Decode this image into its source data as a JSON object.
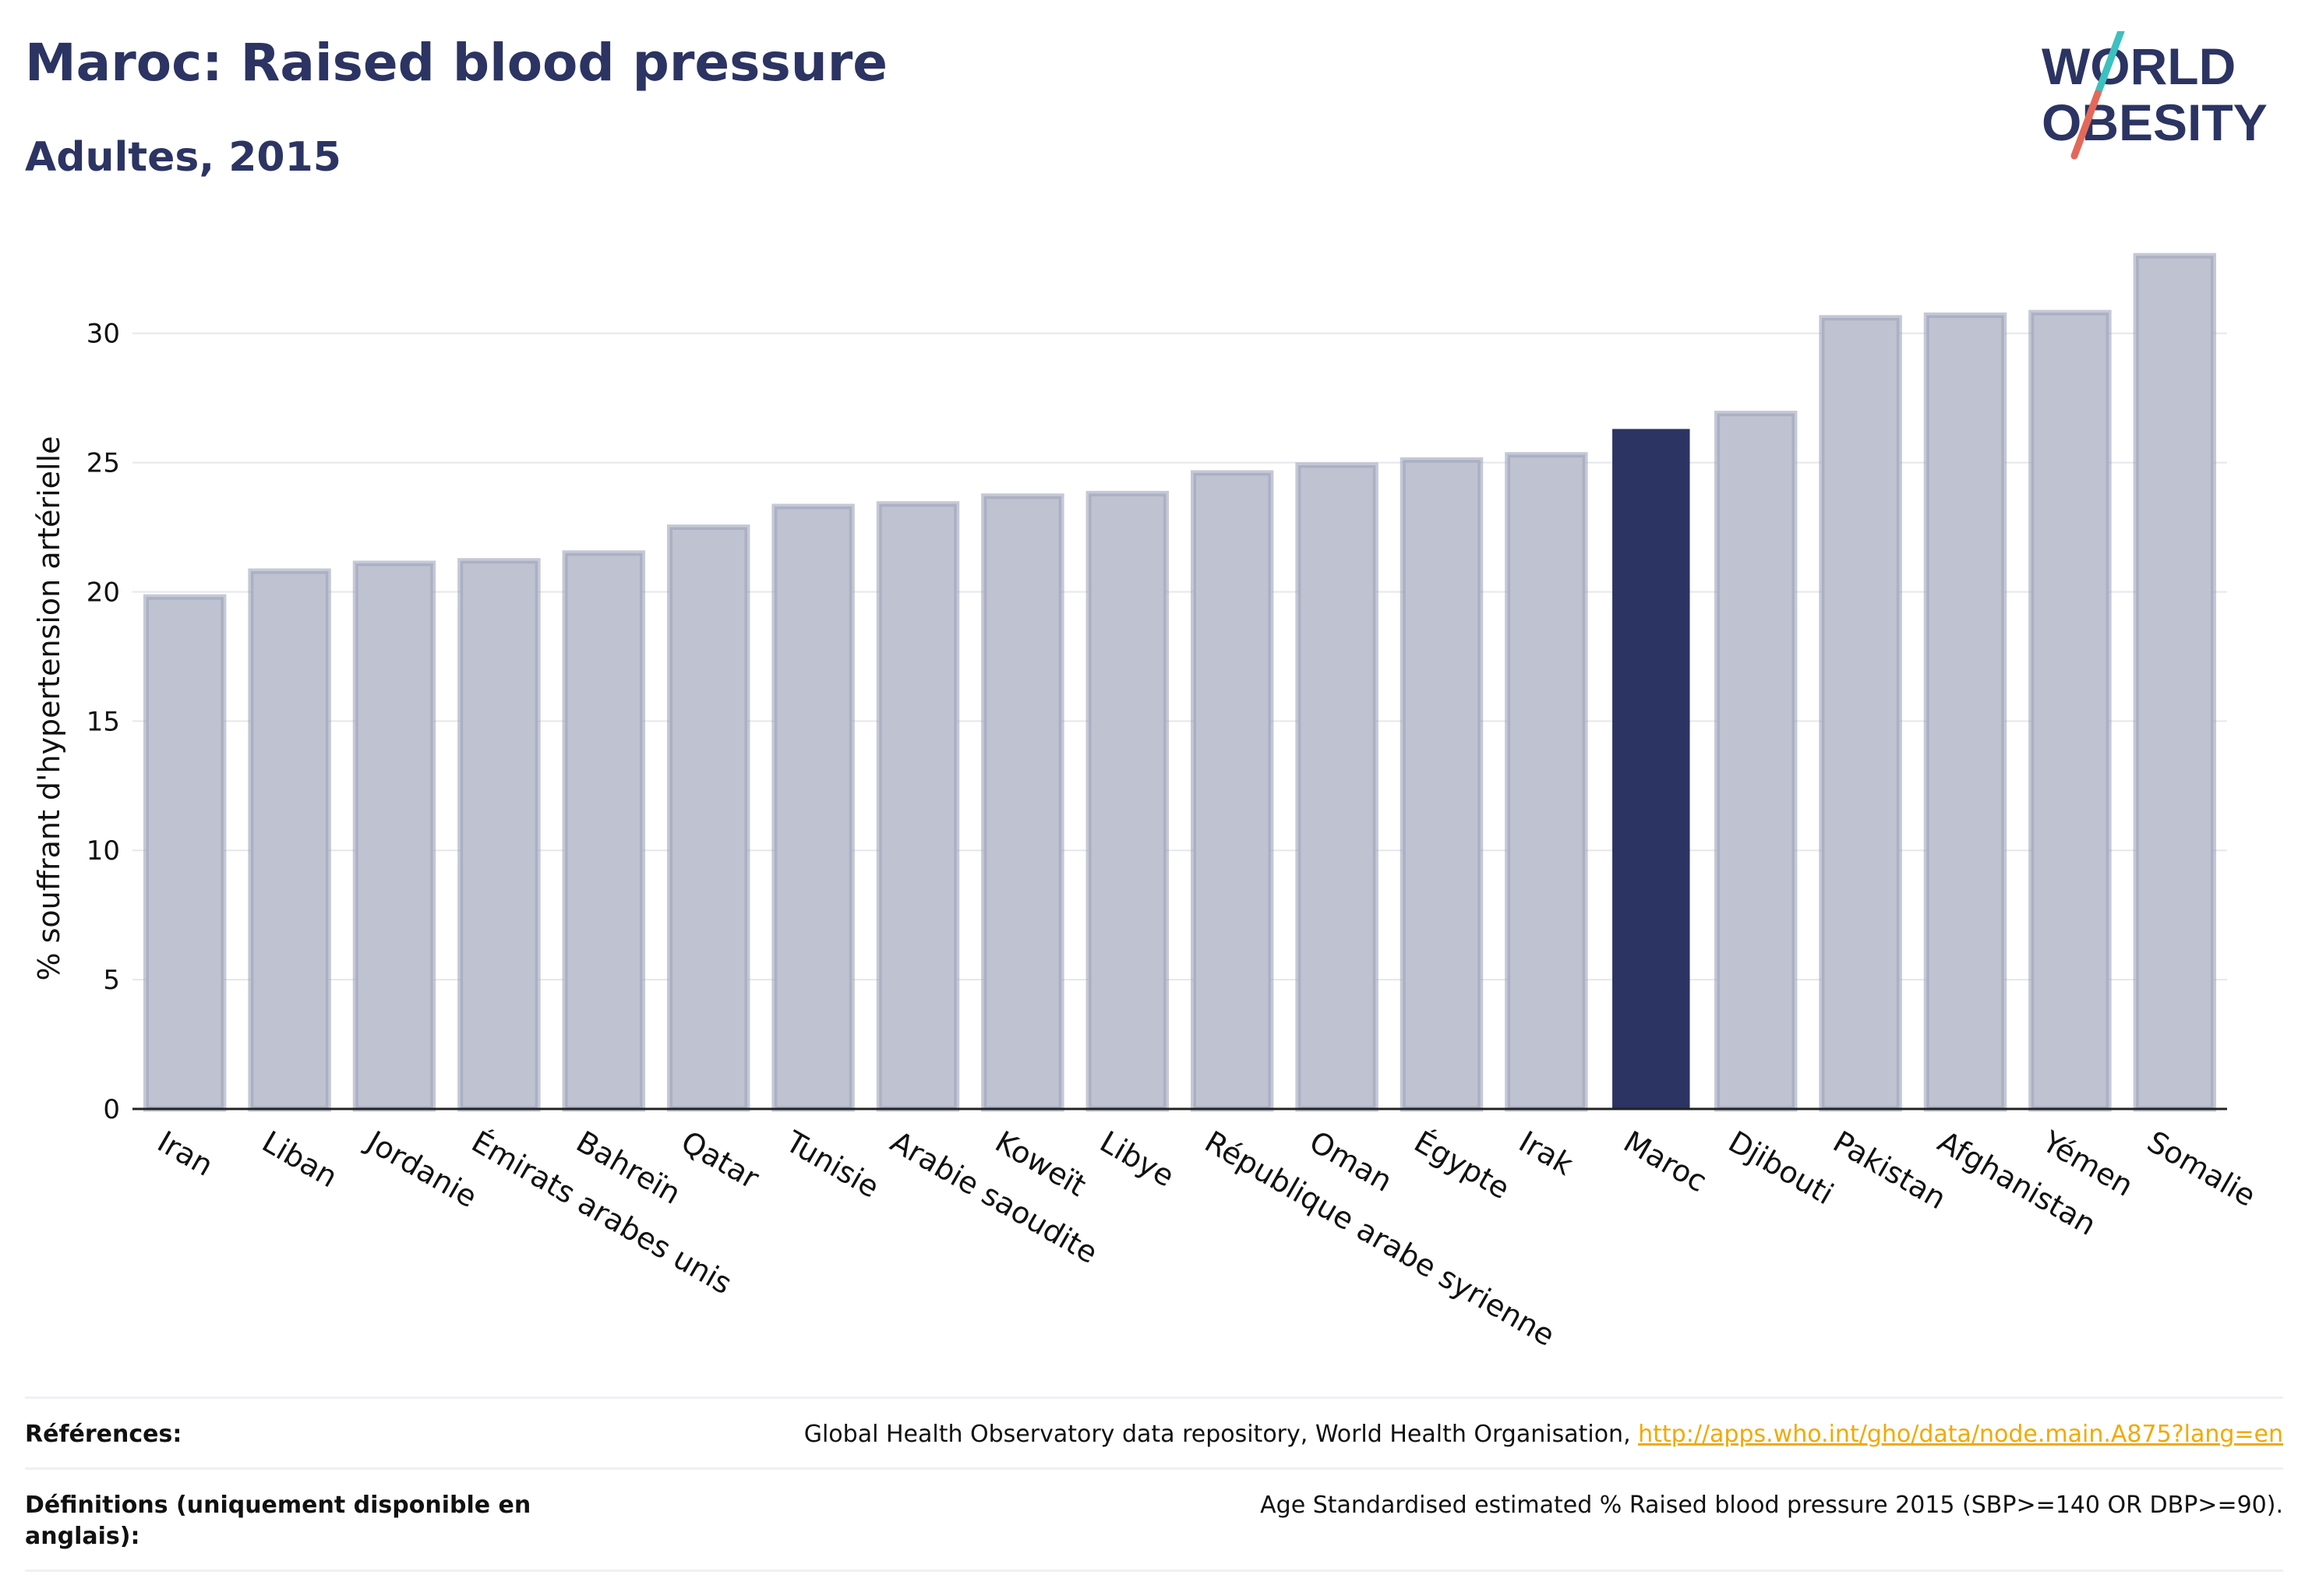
{
  "header": {
    "title": "Maroc: Raised blood pressure",
    "subtitle": "Adultes, 2015"
  },
  "logo": {
    "line1": "WORLD",
    "line2": "OBESITY",
    "colors": {
      "text": "#2b3462",
      "accent_teal": "#3cc0c0",
      "accent_coral": "#e4685a"
    }
  },
  "chart_data": {
    "type": "bar",
    "ylabel": "% souffrant d'hypertension artérielle",
    "xlabel": "",
    "ylim": [
      0,
      34
    ],
    "yticks": [
      0,
      5,
      10,
      15,
      20,
      25,
      30
    ],
    "grid": true,
    "highlight": "Maroc",
    "colors": {
      "bar": "#bfc2d0",
      "bar_edge": "#9ea3bb",
      "highlight": "#2b3462"
    },
    "categories": [
      "Iran",
      "Liban",
      "Jordanie",
      "Émirats arabes unis",
      "Bahreïn",
      "Qatar",
      "Tunisie",
      "Arabie saoudite",
      "Koweït",
      "Libye",
      "République arabe syrienne",
      "Oman",
      "Égypte",
      "Irak",
      "Maroc",
      "Djibouti",
      "Pakistan",
      "Afghanistan",
      "Yémen",
      "Somalie"
    ],
    "values": [
      19.8,
      20.8,
      21.1,
      21.2,
      21.5,
      22.5,
      23.3,
      23.4,
      23.7,
      23.8,
      24.6,
      24.9,
      25.1,
      25.3,
      26.3,
      26.9,
      30.6,
      30.7,
      30.8,
      33.0
    ]
  },
  "references": {
    "sources_label": "Références:",
    "sources_text": "Global Health Observatory data repository, World Health Organisation, ",
    "sources_link": "http://apps.who.int/gho/data/node.main.A875?lang=en",
    "definitions_label": "Définitions (uniquement disponible en anglais):",
    "definitions_text": "Age Standardised estimated % Raised blood pressure 2015 (SBP>=140 OR DBP>=90)."
  }
}
